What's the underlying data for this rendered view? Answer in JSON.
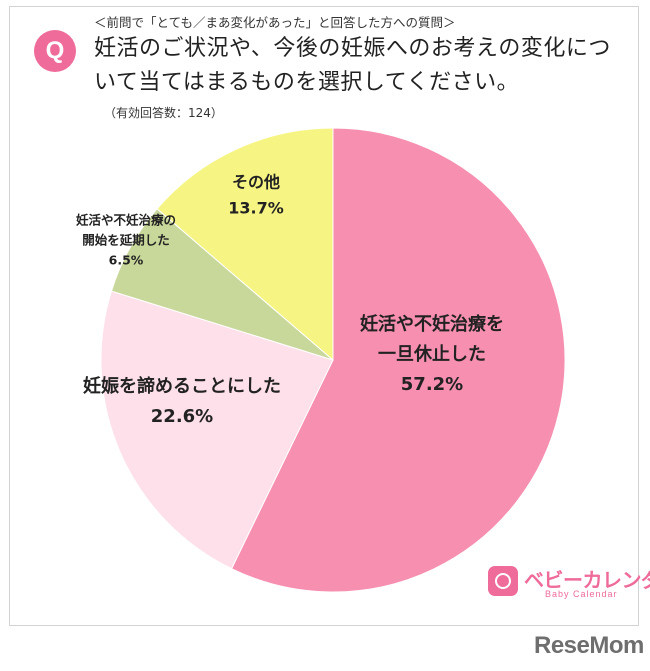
{
  "header": {
    "q_mark": "Q",
    "subtitle": "＜前問で「とても／まあ変化があった」と回答した方への質問＞",
    "question": "妊活のご状況や、今後の妊娠へのお考えの変化について当てはまるものを選択してください。",
    "note": "（有効回答数：124）"
  },
  "chart_data": {
    "type": "pie",
    "title": "",
    "slices": [
      {
        "label_lines": [
          "妊活や不妊治療を",
          "一旦休止した"
        ],
        "pct_label": "57.2%",
        "value": 57.2,
        "color": "#f68fb0"
      },
      {
        "label_lines": [
          "妊娠を諦めることにした"
        ],
        "pct_label": "22.6%",
        "value": 22.6,
        "color": "#fde0ea"
      },
      {
        "label_lines": [
          "妊活や不妊治療の",
          "開始を延期した"
        ],
        "pct_label": "6.5%",
        "value": 6.5,
        "color": "#c8d79a"
      },
      {
        "label_lines": [
          "その他"
        ],
        "pct_label": "13.7%",
        "value": 13.7,
        "color": "#f6f583"
      }
    ]
  },
  "logo": {
    "text": "ベビーカレンダー",
    "sub": "Baby Calendar"
  },
  "watermark": "ReseMom"
}
